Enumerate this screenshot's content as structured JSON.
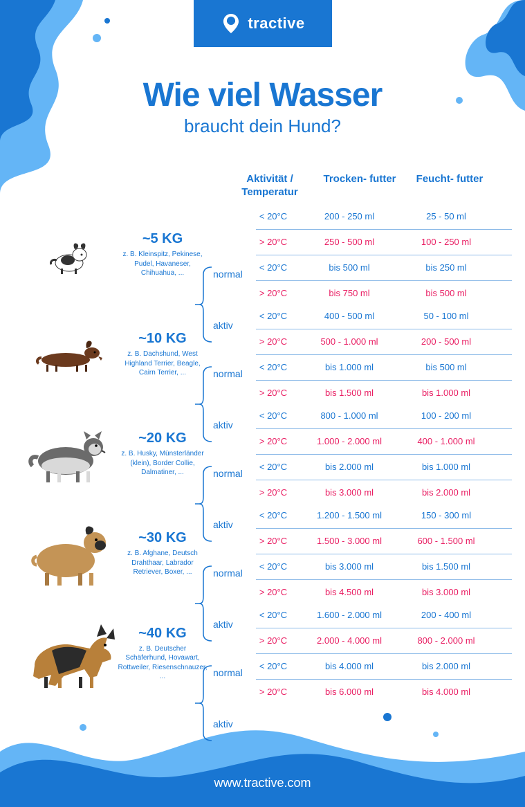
{
  "brand": "tractive",
  "title": "Wie viel Wasser",
  "subtitle": "braucht dein Hund?",
  "footer": "www.tractive.com",
  "colors": {
    "primary": "#1976d2",
    "hot": "#e91e63",
    "wave_light": "#64b5f6",
    "wave_dark": "#1976d2",
    "white": "#ffffff"
  },
  "headers": {
    "activity": "Aktivität /\nTemperatur",
    "dry": "Trocken-\nfutter",
    "wet": "Feucht-\nfutter"
  },
  "activity_labels": {
    "normal": "normal",
    "active": "aktiv"
  },
  "temp_labels": {
    "cold": "< 20°C",
    "hot": "> 20°C"
  },
  "groups": [
    {
      "weight": "~5 KG",
      "examples": "z. B. Kleinspitz,\nPekinese, Pudel,\nHavaneser, Chihuahua, ...",
      "dog_svg": "small",
      "rows": [
        {
          "t": "cold",
          "dry": "200 - 250 ml",
          "wet": "25 - 50 ml"
        },
        {
          "t": "hot",
          "dry": "250 - 500 ml",
          "wet": "100 - 250 ml"
        },
        {
          "t": "cold",
          "dry": "bis 500 ml",
          "wet": "bis 250 ml"
        },
        {
          "t": "hot",
          "dry": "bis 750 ml",
          "wet": "bis 500 ml"
        }
      ]
    },
    {
      "weight": "~10 KG",
      "examples": "z. B. Dachshund,\nWest Highland Terrier,\nBeagle, Cairn Terrier, ...",
      "dog_svg": "dachshund",
      "rows": [
        {
          "t": "cold",
          "dry": "400 - 500 ml",
          "wet": "50 - 100 ml"
        },
        {
          "t": "hot",
          "dry": "500 - 1.000 ml",
          "wet": "200 - 500 ml"
        },
        {
          "t": "cold",
          "dry": "bis 1.000 ml",
          "wet": "bis 500 ml"
        },
        {
          "t": "hot",
          "dry": "bis 1.500 ml",
          "wet": "bis 1.000 ml"
        }
      ]
    },
    {
      "weight": "~20 KG",
      "examples": "z. B. Husky,\nMünsterländer (klein),\nBorder Collie,\nDalmatiner, ...",
      "dog_svg": "husky",
      "rows": [
        {
          "t": "cold",
          "dry": "800 - 1.000 ml",
          "wet": "100 - 200 ml"
        },
        {
          "t": "hot",
          "dry": "1.000 - 2.000 ml",
          "wet": "400 - 1.000 ml"
        },
        {
          "t": "cold",
          "dry": "bis 2.000 ml",
          "wet": "bis 1.000 ml"
        },
        {
          "t": "hot",
          "dry": "bis 3.000 ml",
          "wet": "bis 2.000 ml"
        }
      ]
    },
    {
      "weight": "~30 KG",
      "examples": "z. B. Afghane,\nDeutsch Drahthaar,\nLabrador Retriever,\nBoxer, ...",
      "dog_svg": "boxer",
      "rows": [
        {
          "t": "cold",
          "dry": "1.200 - 1.500 ml",
          "wet": "150 - 300 ml"
        },
        {
          "t": "hot",
          "dry": "1.500 - 3.000 ml",
          "wet": "600 - 1.500 ml"
        },
        {
          "t": "cold",
          "dry": "bis 3.000 ml",
          "wet": "bis 1.500 ml"
        },
        {
          "t": "hot",
          "dry": "bis 4.500 ml",
          "wet": "bis 3.000 ml"
        }
      ]
    },
    {
      "weight": "~40 KG",
      "examples": "z. B. Deutscher\nSchäferhund,\nHovawart, Rottweiler,\nRiesenschnauzer, ...",
      "dog_svg": "shepherd",
      "rows": [
        {
          "t": "cold",
          "dry": "1.600 - 2.000 ml",
          "wet": "200 - 400 ml"
        },
        {
          "t": "hot",
          "dry": "2.000 - 4.000 ml",
          "wet": "800 - 2.000 ml"
        },
        {
          "t": "cold",
          "dry": "bis 4.000 ml",
          "wet": "bis 2.000 ml"
        },
        {
          "t": "hot",
          "dry": "bis 6.000 ml",
          "wet": "bis 4.000 ml"
        }
      ]
    }
  ]
}
